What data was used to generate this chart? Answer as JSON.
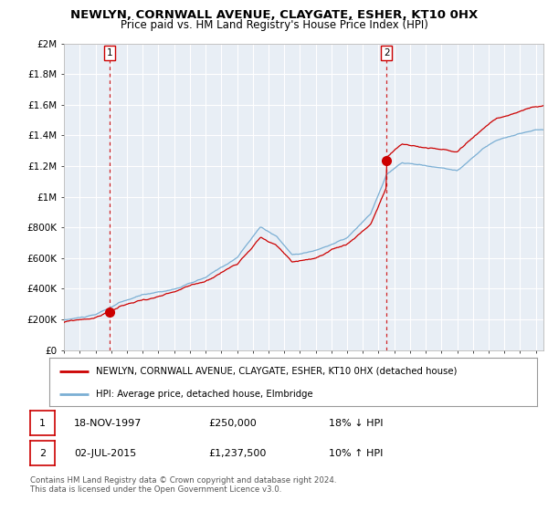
{
  "title": "NEWLYN, CORNWALL AVENUE, CLAYGATE, ESHER, KT10 0HX",
  "subtitle": "Price paid vs. HM Land Registry's House Price Index (HPI)",
  "legend_line1": "NEWLYN, CORNWALL AVENUE, CLAYGATE, ESHER, KT10 0HX (detached house)",
  "legend_line2": "HPI: Average price, detached house, Elmbridge",
  "sale1_label": "1",
  "sale1_date": "18-NOV-1997",
  "sale1_price": "£250,000",
  "sale1_hpi": "18% ↓ HPI",
  "sale2_label": "2",
  "sale2_date": "02-JUL-2015",
  "sale2_price": "£1,237,500",
  "sale2_hpi": "10% ↑ HPI",
  "footer": "Contains HM Land Registry data © Crown copyright and database right 2024.\nThis data is licensed under the Open Government Licence v3.0.",
  "sale1_color": "#cc0000",
  "sale2_color": "#cc0000",
  "hpi_line_color": "#7bafd4",
  "price_line_color": "#cc0000",
  "vline_color": "#cc0000",
  "chart_bg_color": "#e8eef5",
  "background_color": "#ffffff",
  "grid_color": "#ffffff",
  "ylim": [
    0,
    2000000
  ],
  "yticks": [
    0,
    200000,
    400000,
    600000,
    800000,
    1000000,
    1200000,
    1400000,
    1600000,
    1800000,
    2000000
  ],
  "ytick_labels": [
    "£0",
    "£200K",
    "£400K",
    "£600K",
    "£800K",
    "£1M",
    "£1.2M",
    "£1.4M",
    "£1.6M",
    "£1.8M",
    "£2M"
  ],
  "sale1_x": 1997.9,
  "sale1_y": 250000,
  "sale2_x": 2015.5,
  "sale2_y": 1237500,
  "xmin": 1995.0,
  "xmax": 2025.5
}
